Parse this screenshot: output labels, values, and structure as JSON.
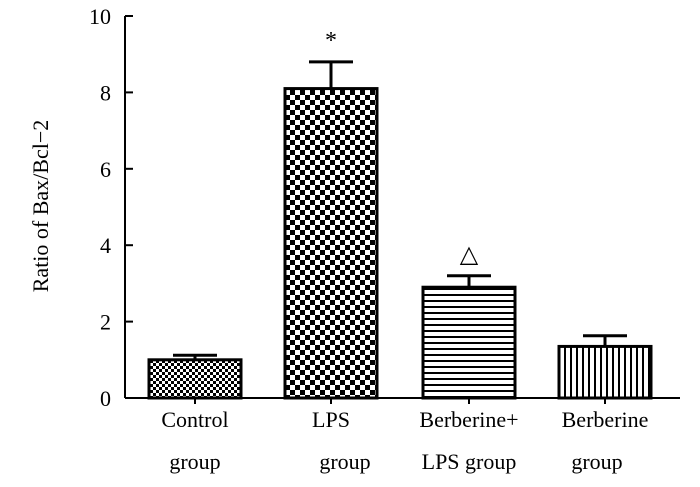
{
  "chart_data": {
    "type": "bar",
    "ylabel": "Ratio of Bax/Bcl−2",
    "xlabel": "",
    "ylim": [
      0,
      10
    ],
    "yticks": [
      0,
      2,
      4,
      6,
      8,
      10
    ],
    "categories": [
      {
        "lines": [
          "Control",
          "group"
        ],
        "value": 1.0,
        "error": 0.12,
        "pattern": "fine-checker",
        "annotation": ""
      },
      {
        "lines": [
          "LPS",
          "group"
        ],
        "value": 8.1,
        "error": 0.7,
        "pattern": "checker",
        "annotation": "*"
      },
      {
        "lines": [
          "Berberine+",
          "LPS  group"
        ],
        "value": 2.9,
        "error": 0.3,
        "pattern": "horizontal-lines",
        "annotation": "△"
      },
      {
        "lines": [
          "Berberine",
          "group"
        ],
        "value": 1.35,
        "error": 0.28,
        "pattern": "vertical-lines",
        "annotation": ""
      }
    ],
    "grid": false,
    "colors": {
      "bar_stroke": "#000000",
      "pattern_ink": "#000000",
      "background": "#ffffff"
    }
  }
}
